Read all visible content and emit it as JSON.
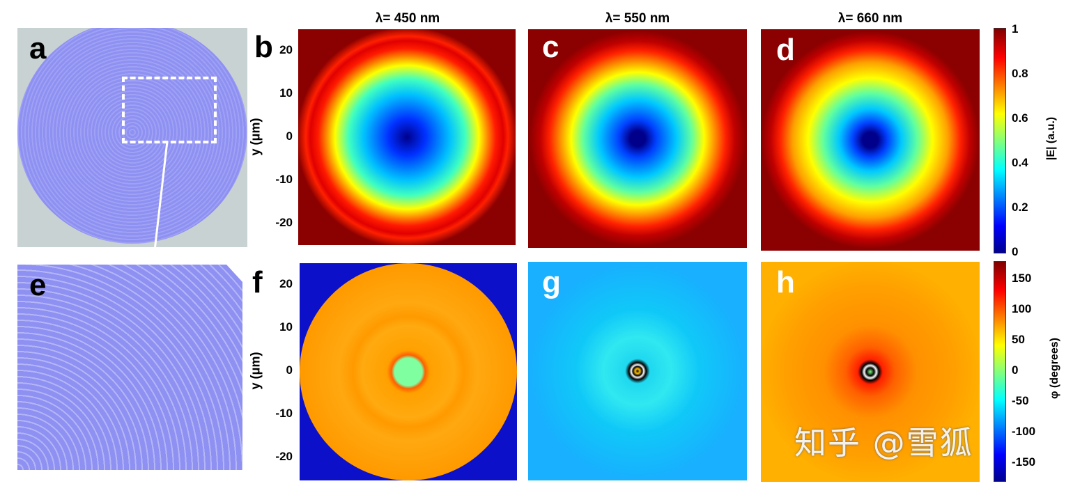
{
  "panel_labels": {
    "a": "a",
    "b": "b",
    "c": "c",
    "d": "d",
    "e": "e",
    "f": "f",
    "g": "g",
    "h": "h"
  },
  "column_titles": [
    "λ= 450 nm",
    "λ= 550 nm",
    "λ= 660 nm"
  ],
  "watermark": "知乎 @雪狐",
  "chart_data": [
    {
      "type": "heatmap",
      "panel": "b",
      "title": "λ= 450 nm",
      "ylabel": "y (μm)",
      "yticks": [
        "20",
        "10",
        "0",
        "-10",
        "-20"
      ],
      "ylim": [
        -25,
        25
      ],
      "quantity": "|E| (a.u.)",
      "description_values": {
        "center": 0.05,
        "ring_peak": 0.9,
        "outside": 1
      }
    },
    {
      "type": "heatmap",
      "panel": "c",
      "title": "λ= 550 nm",
      "ylim": [
        -25,
        25
      ],
      "quantity": "|E| (a.u.)"
    },
    {
      "type": "heatmap",
      "panel": "d",
      "title": "λ= 660 nm",
      "ylim": [
        -25,
        25
      ],
      "quantity": "|E| (a.u.)"
    },
    {
      "type": "heatmap",
      "panel": "f",
      "ylabel": "y (μm)",
      "yticks": [
        "20",
        "10",
        "0",
        "-10",
        "-20"
      ],
      "ylim": [
        -25,
        25
      ],
      "quantity": "φ (degrees)"
    },
    {
      "type": "heatmap",
      "panel": "g",
      "ylim": [
        -25,
        25
      ],
      "quantity": "φ (degrees)"
    },
    {
      "type": "heatmap",
      "panel": "h",
      "ylim": [
        -25,
        25
      ],
      "quantity": "φ (degrees)"
    }
  ],
  "colorbars": [
    {
      "label": "|E| (a.u.)",
      "ticks": [
        "1",
        "0.8",
        "0.6",
        "0.4",
        "0.2",
        "0"
      ],
      "range": [
        0,
        1
      ],
      "colormap": "jet"
    },
    {
      "label": "φ (degrees)",
      "ticks": [
        "150",
        "100",
        "50",
        "0",
        "-50",
        "-100",
        "-150"
      ],
      "range": [
        -180,
        180
      ],
      "colormap": "jet"
    }
  ],
  "colors": {
    "lens": "#8e90f2",
    "lens_bg": "#c9d2d2",
    "dark_red": "#8b0000",
    "deep_blue": "#0c10c8"
  }
}
